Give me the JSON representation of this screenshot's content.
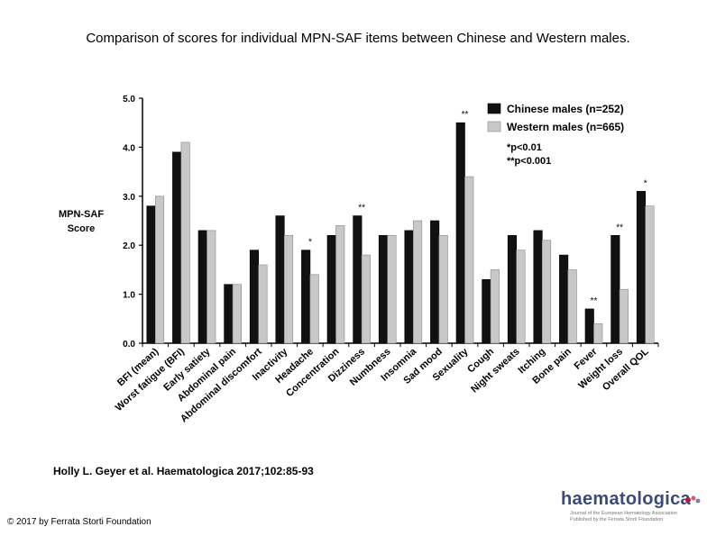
{
  "page": {
    "title": "Comparison of scores for individual MPN-SAF items between Chinese and Western males.",
    "citation": "Holly L. Geyer et al. Haematologica 2017;102:85-93",
    "copyright": "© 2017 by Ferrata Storti Foundation",
    "logo": {
      "word": "haematologica",
      "subtitle_line1": "Journal of the European Hematology Association",
      "subtitle_line2": "Published by the Ferrata Storti Foundation"
    }
  },
  "chart_data": {
    "type": "bar",
    "ylabel": [
      "MPN-SAF",
      "Score"
    ],
    "ylim": [
      0,
      5
    ],
    "yticks": [
      "0.0",
      "1.0",
      "2.0",
      "3.0",
      "4.0",
      "5.0"
    ],
    "categories": [
      "BFI (mean)",
      "Worst fatigue (BFI)",
      "Early satiety",
      "Abdominal pain",
      "Abdominal discomfort",
      "Inactivity",
      "Headache",
      "Concentration",
      "Dizziness",
      "Numbness",
      "Insomnia",
      "Sad mood",
      "Sexuality",
      "Cough",
      "Night sweats",
      "Itching",
      "Bone pain",
      "Fever",
      "Weight loss",
      "Overall QOL"
    ],
    "series": [
      {
        "name": "Chinese males (n=252)",
        "color": "#111111",
        "values": [
          2.8,
          3.9,
          2.3,
          1.2,
          1.9,
          2.6,
          1.9,
          2.2,
          2.6,
          2.2,
          2.3,
          2.5,
          4.5,
          1.3,
          2.2,
          2.3,
          1.8,
          0.7,
          2.2,
          3.1
        ]
      },
      {
        "name": "Western males (n=665)",
        "color": "#c8c8c8",
        "values": [
          3.0,
          4.1,
          2.3,
          1.2,
          1.6,
          2.2,
          1.4,
          2.4,
          1.8,
          2.2,
          2.5,
          2.2,
          3.4,
          1.5,
          1.9,
          2.1,
          1.5,
          0.4,
          1.1,
          2.8
        ]
      }
    ],
    "significance": [
      "",
      "",
      "",
      "",
      "",
      "",
      "*",
      "",
      "**",
      "",
      "",
      "",
      "**",
      "",
      "",
      "",
      "",
      "**",
      "**",
      "*"
    ],
    "legend_notes": [
      "*p<0.01",
      "**p<0.001"
    ],
    "legend_position": "top-right",
    "grid": false
  }
}
